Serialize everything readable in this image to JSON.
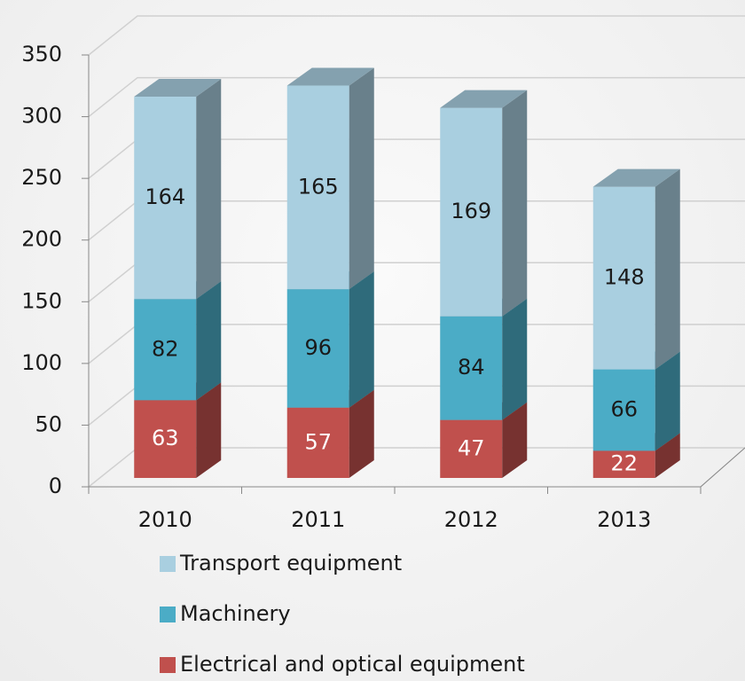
{
  "chart_data": {
    "type": "bar3d_stacked",
    "categories": [
      "2010",
      "2011",
      "2012",
      "2013"
    ],
    "series": [
      {
        "name": "Electrical and optical equipment",
        "color": "#c0504d",
        "values": [
          63,
          57,
          47,
          22
        ]
      },
      {
        "name": "Machinery",
        "color": "#4bacc6",
        "values": [
          82,
          96,
          84,
          66
        ]
      },
      {
        "name": "Transport equipment",
        "color": "#a9cfe0",
        "values": [
          164,
          165,
          169,
          148
        ]
      }
    ],
    "ylim": [
      0,
      350
    ],
    "yticks": [
      0,
      50,
      100,
      150,
      200,
      250,
      300,
      350
    ],
    "grid": true
  }
}
